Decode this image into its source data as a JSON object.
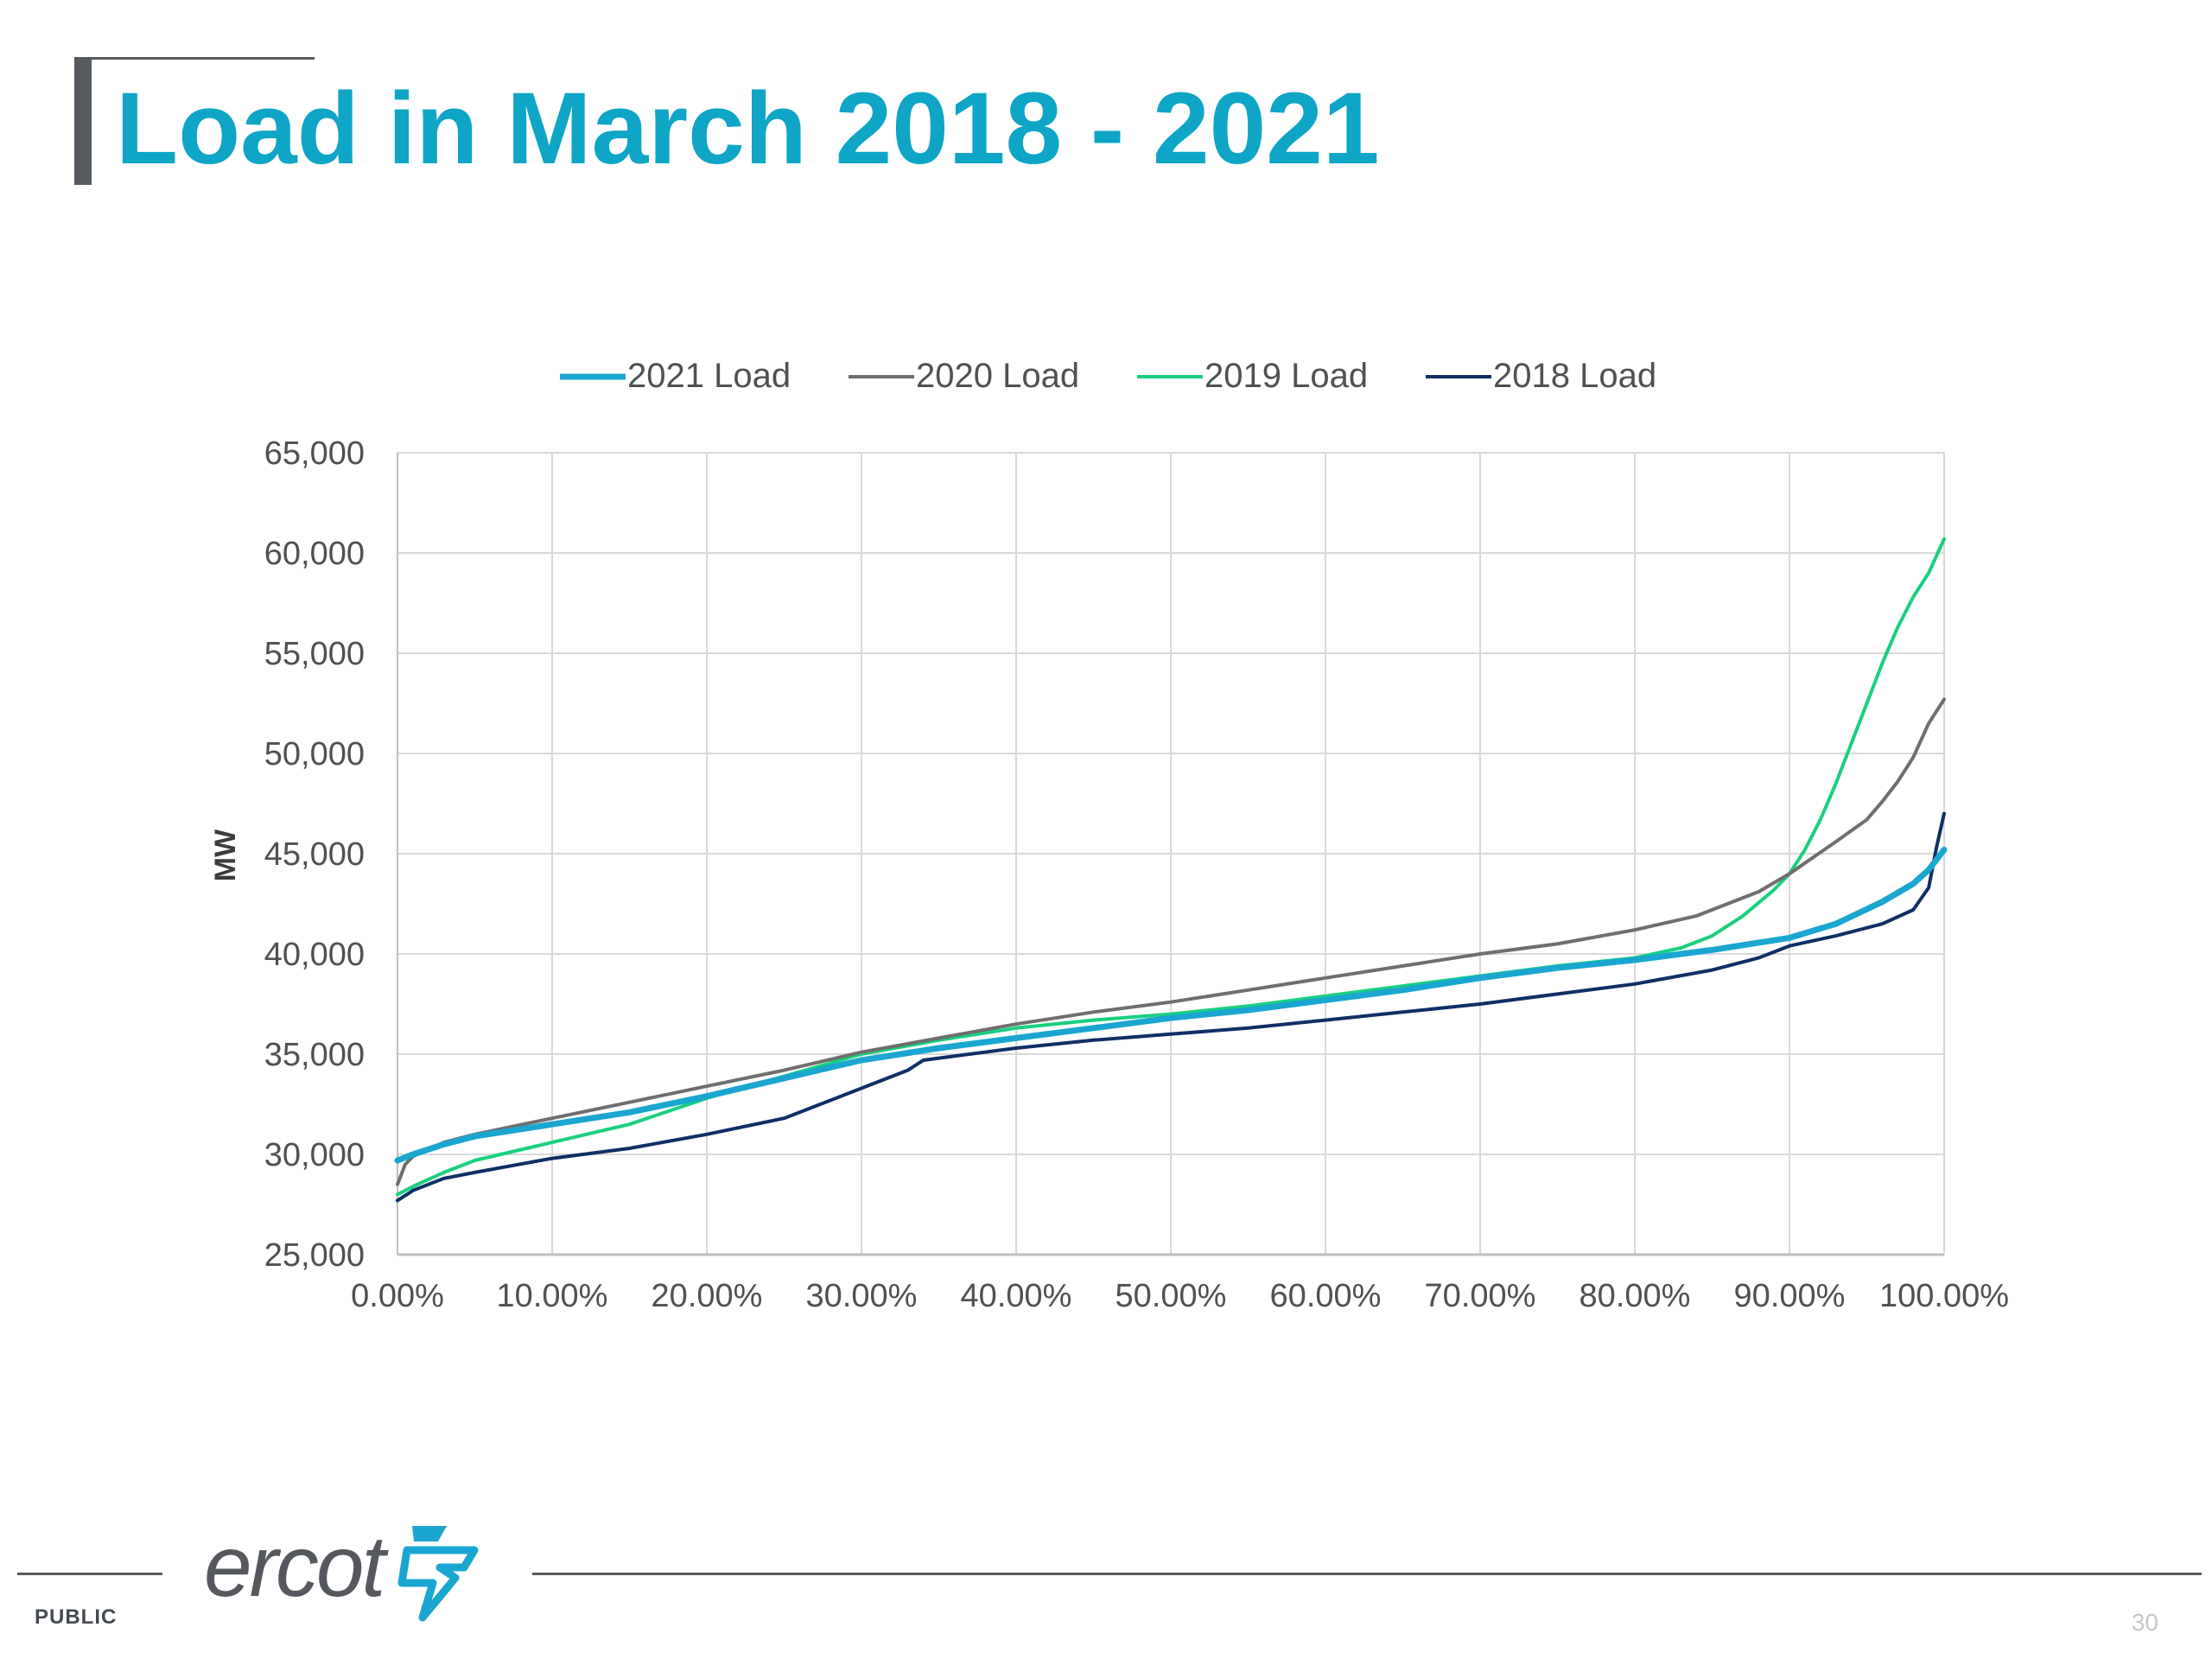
{
  "slide": {
    "title": "Load in March 2018 - 2021",
    "footer_label": "PUBLIC",
    "page_number": "30",
    "logo": "ercot"
  },
  "colors": {
    "title": "#0ea5c6",
    "2021": "#1aa6d0",
    "2020": "#6e6e6e",
    "2019": "#19d07f",
    "2018": "#0f2f66"
  },
  "chart_data": {
    "type": "line",
    "title": "",
    "xlabel": "",
    "ylabel": "MW",
    "xlim": [
      0,
      100
    ],
    "ylim": [
      25000,
      65000
    ],
    "x_ticks": [
      "0.00%",
      "10.00%",
      "20.00%",
      "30.00%",
      "40.00%",
      "50.00%",
      "60.00%",
      "70.00%",
      "80.00%",
      "90.00%",
      "100.00%"
    ],
    "y_ticks": [
      "25,000",
      "30,000",
      "35,000",
      "40,000",
      "45,000",
      "50,000",
      "55,000",
      "60,000",
      "65,000"
    ],
    "grid": true,
    "legend_position": "top",
    "series": [
      {
        "name": "2021 Load",
        "color": "#1aa6d0",
        "points": [
          [
            0,
            29700
          ],
          [
            1,
            30000
          ],
          [
            3,
            30500
          ],
          [
            5,
            30900
          ],
          [
            10,
            31500
          ],
          [
            15,
            32100
          ],
          [
            20,
            32900
          ],
          [
            25,
            33800
          ],
          [
            30,
            34700
          ],
          [
            35,
            35300
          ],
          [
            40,
            35800
          ],
          [
            45,
            36300
          ],
          [
            50,
            36800
          ],
          [
            55,
            37200
          ],
          [
            60,
            37700
          ],
          [
            65,
            38200
          ],
          [
            70,
            38800
          ],
          [
            75,
            39300
          ],
          [
            80,
            39700
          ],
          [
            85,
            40200
          ],
          [
            90,
            40800
          ],
          [
            93,
            41500
          ],
          [
            96,
            42600
          ],
          [
            98,
            43500
          ],
          [
            99,
            44200
          ],
          [
            100,
            45200
          ]
        ]
      },
      {
        "name": "2020 Load",
        "color": "#6e6e6e",
        "points": [
          [
            0,
            28500
          ],
          [
            0.5,
            29500
          ],
          [
            1,
            29900
          ],
          [
            3,
            30600
          ],
          [
            5,
            31000
          ],
          [
            10,
            31800
          ],
          [
            15,
            32600
          ],
          [
            20,
            33400
          ],
          [
            25,
            34200
          ],
          [
            30,
            35100
          ],
          [
            35,
            35800
          ],
          [
            40,
            36500
          ],
          [
            45,
            37100
          ],
          [
            50,
            37600
          ],
          [
            55,
            38200
          ],
          [
            60,
            38800
          ],
          [
            65,
            39400
          ],
          [
            70,
            40000
          ],
          [
            75,
            40500
          ],
          [
            80,
            41200
          ],
          [
            84,
            41900
          ],
          [
            88,
            43100
          ],
          [
            90,
            44000
          ],
          [
            93,
            45600
          ],
          [
            95,
            46700
          ],
          [
            96,
            47600
          ],
          [
            97,
            48600
          ],
          [
            98,
            49800
          ],
          [
            99,
            51500
          ],
          [
            100,
            52700
          ]
        ]
      },
      {
        "name": "2019 Load",
        "color": "#19d07f",
        "points": [
          [
            0,
            28000
          ],
          [
            1,
            28400
          ],
          [
            3,
            29100
          ],
          [
            5,
            29700
          ],
          [
            10,
            30600
          ],
          [
            15,
            31500
          ],
          [
            20,
            32800
          ],
          [
            25,
            33900
          ],
          [
            30,
            35000
          ],
          [
            35,
            35700
          ],
          [
            40,
            36300
          ],
          [
            45,
            36700
          ],
          [
            50,
            37000
          ],
          [
            55,
            37400
          ],
          [
            60,
            37900
          ],
          [
            65,
            38400
          ],
          [
            70,
            38900
          ],
          [
            75,
            39400
          ],
          [
            80,
            39800
          ],
          [
            83,
            40300
          ],
          [
            85,
            40900
          ],
          [
            87,
            41900
          ],
          [
            89,
            43200
          ],
          [
            90,
            44000
          ],
          [
            91,
            45200
          ],
          [
            92,
            46700
          ],
          [
            93,
            48500
          ],
          [
            94,
            50500
          ],
          [
            95,
            52500
          ],
          [
            96,
            54500
          ],
          [
            97,
            56300
          ],
          [
            98,
            57800
          ],
          [
            99,
            59000
          ],
          [
            100,
            60700
          ]
        ]
      },
      {
        "name": "2018 Load",
        "color": "#0f2f66",
        "points": [
          [
            0,
            27700
          ],
          [
            1,
            28200
          ],
          [
            3,
            28800
          ],
          [
            5,
            29100
          ],
          [
            10,
            29800
          ],
          [
            15,
            30300
          ],
          [
            20,
            31000
          ],
          [
            25,
            31800
          ],
          [
            28,
            32700
          ],
          [
            31,
            33600
          ],
          [
            33,
            34200
          ],
          [
            34,
            34700
          ],
          [
            35,
            34800
          ],
          [
            40,
            35300
          ],
          [
            45,
            35700
          ],
          [
            50,
            36000
          ],
          [
            55,
            36300
          ],
          [
            60,
            36700
          ],
          [
            65,
            37100
          ],
          [
            70,
            37500
          ],
          [
            75,
            38000
          ],
          [
            80,
            38500
          ],
          [
            85,
            39200
          ],
          [
            88,
            39800
          ],
          [
            90,
            40400
          ],
          [
            93,
            40900
          ],
          [
            96,
            41500
          ],
          [
            98,
            42200
          ],
          [
            99,
            43300
          ],
          [
            99.5,
            45300
          ],
          [
            100,
            47000
          ]
        ]
      }
    ]
  }
}
